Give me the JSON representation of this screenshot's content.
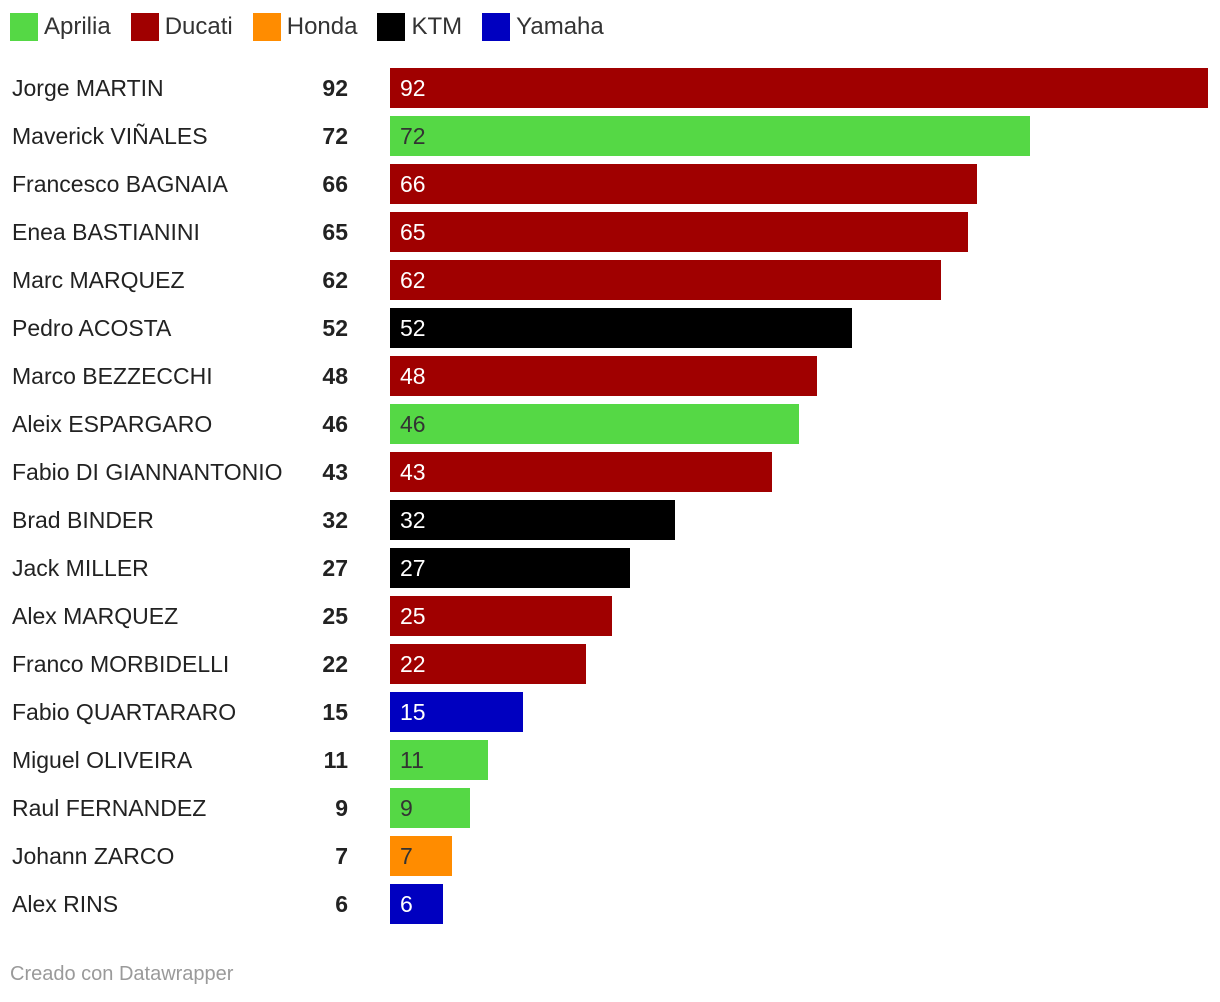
{
  "legend": [
    {
      "label": "Aprilia",
      "color": "#55d845"
    },
    {
      "label": "Ducati",
      "color": "#a00000"
    },
    {
      "label": "Honda",
      "color": "#ff8c00"
    },
    {
      "label": "KTM",
      "color": "#000000"
    },
    {
      "label": "Yamaha",
      "color": "#0000c0"
    }
  ],
  "chart_data": {
    "type": "bar",
    "orientation": "horizontal",
    "legend_position": "top-left",
    "xlim": [
      0,
      92
    ],
    "grid": false,
    "rows": [
      {
        "name": "Jorge MARTIN",
        "value": 92,
        "manufacturer": "Ducati"
      },
      {
        "name": "Maverick VIÑALES",
        "value": 72,
        "manufacturer": "Aprilia"
      },
      {
        "name": "Francesco BAGNAIA",
        "value": 66,
        "manufacturer": "Ducati"
      },
      {
        "name": "Enea BASTIANINI",
        "value": 65,
        "manufacturer": "Ducati"
      },
      {
        "name": "Marc MARQUEZ",
        "value": 62,
        "manufacturer": "Ducati"
      },
      {
        "name": "Pedro ACOSTA",
        "value": 52,
        "manufacturer": "KTM"
      },
      {
        "name": "Marco BEZZECCHI",
        "value": 48,
        "manufacturer": "Ducati"
      },
      {
        "name": "Aleix ESPARGARO",
        "value": 46,
        "manufacturer": "Aprilia"
      },
      {
        "name": "Fabio DI GIANNANTONIO",
        "value": 43,
        "manufacturer": "Ducati"
      },
      {
        "name": "Brad BINDER",
        "value": 32,
        "manufacturer": "KTM"
      },
      {
        "name": "Jack MILLER",
        "value": 27,
        "manufacturer": "KTM"
      },
      {
        "name": "Alex MARQUEZ",
        "value": 25,
        "manufacturer": "Ducati"
      },
      {
        "name": "Franco MORBIDELLI",
        "value": 22,
        "manufacturer": "Ducati"
      },
      {
        "name": "Fabio QUARTARARO",
        "value": 15,
        "manufacturer": "Yamaha"
      },
      {
        "name": "Miguel OLIVEIRA",
        "value": 11,
        "manufacturer": "Aprilia"
      },
      {
        "name": "Raul FERNANDEZ",
        "value": 9,
        "manufacturer": "Aprilia"
      },
      {
        "name": "Johann ZARCO",
        "value": 7,
        "manufacturer": "Honda"
      },
      {
        "name": "Alex RINS",
        "value": 6,
        "manufacturer": "Yamaha"
      }
    ]
  },
  "footer": {
    "credit": "Creado con Datawrapper"
  }
}
